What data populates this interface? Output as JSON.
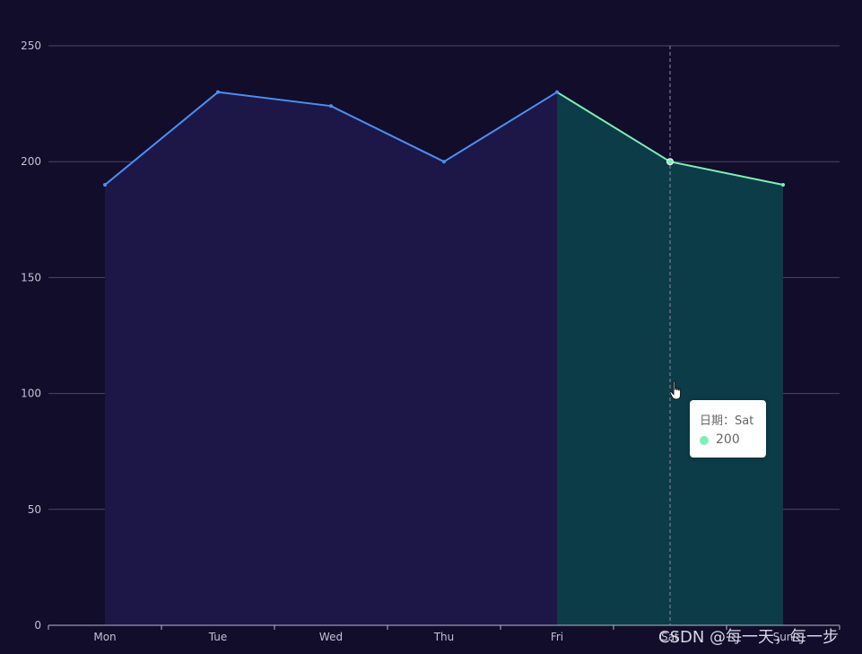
{
  "chart_data": {
    "type": "area",
    "title": "",
    "xlabel": "",
    "ylabel": "",
    "categories": [
      "Mon",
      "Tue",
      "Wed",
      "Thu",
      "Fri",
      "Sat",
      "Sun"
    ],
    "series": [
      {
        "name": "",
        "values": [
          190,
          230,
          224,
          200,
          230,
          200,
          190
        ]
      }
    ],
    "ylim": [
      0,
      250
    ],
    "yticks": [
      0,
      50,
      100,
      150,
      200,
      250
    ],
    "grid": true,
    "visual_map": {
      "pieces": [
        {
          "from_index": 0,
          "to_index": 4,
          "line_color": "#4b8ff5",
          "area_color": "#1d1747"
        },
        {
          "from_index": 4,
          "to_index": 6,
          "line_color": "#7cf0b3",
          "area_color": "#0b3c48"
        }
      ]
    },
    "hover": {
      "category": "Sat"
    },
    "colors": {
      "background": "#110d2a",
      "gridline": "#4a4768",
      "axis_line": "#b9b7c9",
      "crosshair": "#8c8aa3"
    }
  },
  "tooltip": {
    "label": "日期：Sat",
    "value": "200",
    "dot_color": "#7cf0b3"
  },
  "watermark": "CSDN @每一天，每一步",
  "icons": {
    "cursor": "hand-pointer-icon"
  }
}
